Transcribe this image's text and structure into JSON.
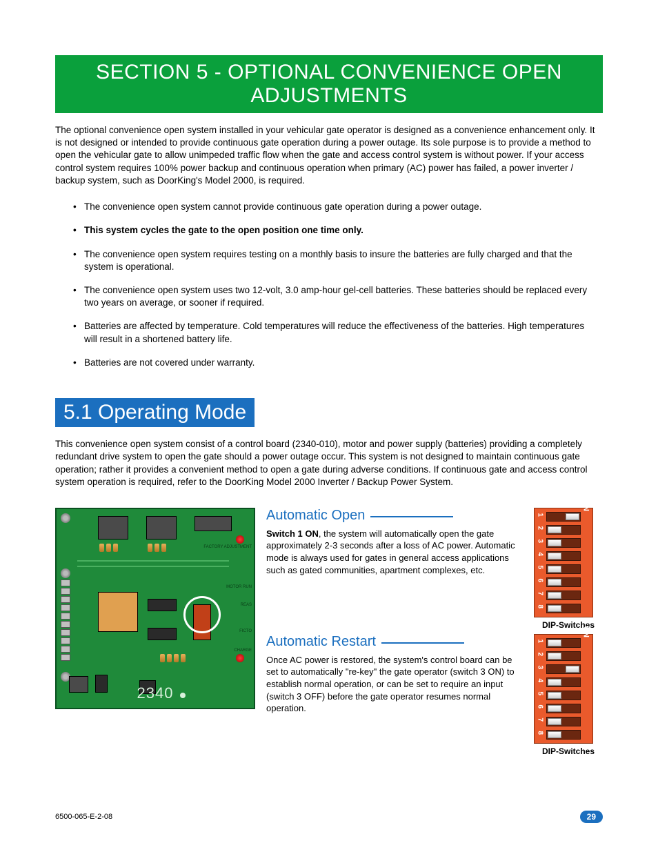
{
  "section_header": "SECTION 5 - OPTIONAL CONVENIENCE OPEN ADJUSTMENTS",
  "intro": "The optional convenience open system installed in your vehicular gate operator is designed as a convenience enhancement only. It is not designed or intended to provide continuous gate operation during a power outage. Its sole purpose is to provide a method to open the vehicular gate to allow unimpeded traffic flow when the gate and access control system is without power. If your access control system requires 100% power backup and continuous operation when primary (AC) power has failed, a power inverter / backup system, such as DoorKing's Model 2000, is required.",
  "bullets": [
    {
      "text": "The convenience open system cannot provide continuous gate operation during a power outage.",
      "bold": false
    },
    {
      "text": "This system cycles the gate to the open position one time only.",
      "bold": true
    },
    {
      "text": "The convenience open system requires testing on a monthly basis to insure the batteries are fully charged and that the system is operational.",
      "bold": false
    },
    {
      "text": "The convenience open system uses two 12-volt, 3.0 amp-hour gel-cell batteries. These batteries should be replaced every two years on average, or sooner if required.",
      "bold": false
    },
    {
      "text": "Batteries are affected by temperature. Cold temperatures will reduce the effectiveness of the batteries. High temperatures will result in a shortened battery life.",
      "bold": false
    },
    {
      "text": "Batteries are not covered under warranty.",
      "bold": false
    }
  ],
  "subsection_header": "5.1 Operating Mode",
  "subsection_text": "This convenience open system consist of a control board (2340-010), motor and power supply (batteries) providing a completely redundant drive system to open the gate should a power outage occur. This system is not designed to maintain continuous gate operation; rather it provides a convenient method to open a gate during adverse conditions. If continuous gate and access control system operation is required, refer to the DoorKing Model 2000 Inverter / Backup Power System.",
  "board": {
    "model": "2340",
    "side_labels": [
      "FACTORY ADJUSTMENT",
      "MOTOR RUN",
      "REAS",
      "FICTO",
      "CHARGE"
    ]
  },
  "auto_open": {
    "heading": "Automatic Open",
    "lead_bold": "Switch 1 ON",
    "text": ", the system will automatically open the gate approximately 2-3 seconds after a loss of AC power. Automatic mode is always used for gates in general access applications such as gated communities, apartment complexes, etc."
  },
  "auto_restart": {
    "heading": "Automatic Restart",
    "text": "Once AC power is restored, the system's control board can be set to automatically \"re-key\" the gate operator (switch 3 ON) to establish normal operation, or can be set to require an input (switch 3 OFF) before the gate operator resumes normal operation."
  },
  "dip1": {
    "on_label": "ON",
    "caption": "DIP-Switches",
    "switches": [
      {
        "num": "1",
        "state": "on"
      },
      {
        "num": "2",
        "state": "off"
      },
      {
        "num": "3",
        "state": "off"
      },
      {
        "num": "4",
        "state": "off"
      },
      {
        "num": "5",
        "state": "off"
      },
      {
        "num": "6",
        "state": "off"
      },
      {
        "num": "7",
        "state": "off"
      },
      {
        "num": "8",
        "state": "off"
      }
    ]
  },
  "dip2": {
    "on_label": "ON",
    "caption": "DIP-Switches",
    "switches": [
      {
        "num": "1",
        "state": "off"
      },
      {
        "num": "2",
        "state": "off"
      },
      {
        "num": "3",
        "state": "on"
      },
      {
        "num": "4",
        "state": "off"
      },
      {
        "num": "5",
        "state": "off"
      },
      {
        "num": "6",
        "state": "off"
      },
      {
        "num": "7",
        "state": "off"
      },
      {
        "num": "8",
        "state": "off"
      }
    ]
  },
  "footer": {
    "doc_id": "6500-065-E-2-08",
    "page": "29"
  },
  "colors": {
    "green_header": "#0aa03c",
    "blue_header": "#1b6fbf",
    "pcb_green": "#1f8a3a",
    "dip_orange": "#ea5a2c"
  }
}
